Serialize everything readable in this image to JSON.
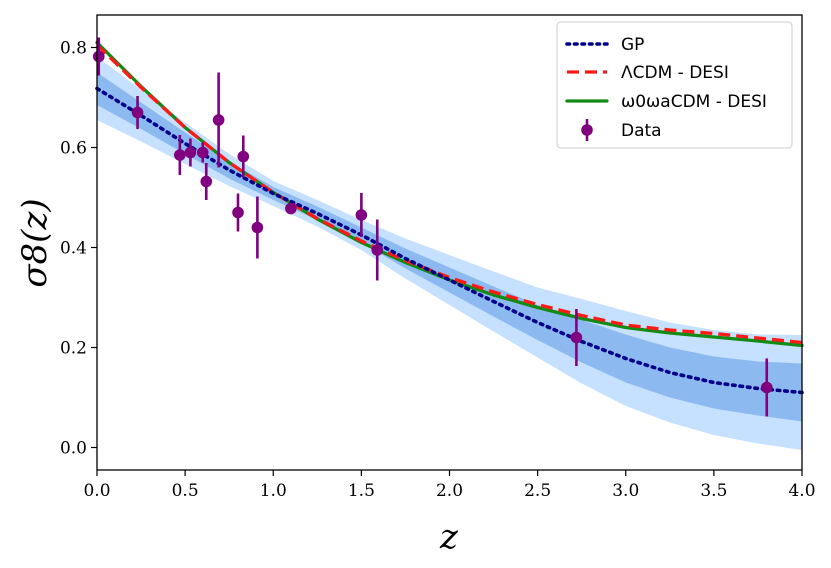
{
  "chart_data": {
    "type": "line",
    "xlabel": "z",
    "ylabel": "σ8(z)",
    "xlim": [
      0.0,
      4.0
    ],
    "ylim": [
      -0.045,
      0.865
    ],
    "xticks": [
      "0.0",
      "0.5",
      "1.0",
      "1.5",
      "2.0",
      "2.5",
      "3.0",
      "3.5",
      "4.0"
    ],
    "yticks": [
      "0.0",
      "0.2",
      "0.4",
      "0.6",
      "0.8"
    ],
    "grid": false,
    "legend_position": "top-right",
    "series": [
      {
        "name": "GP",
        "style": "dotted",
        "color": "#00008b",
        "x": [
          0.0,
          0.25,
          0.5,
          0.75,
          1.0,
          1.25,
          1.5,
          1.75,
          2.0,
          2.25,
          2.5,
          2.75,
          3.0,
          3.25,
          3.5,
          3.75,
          4.0
        ],
        "y": [
          0.718,
          0.664,
          0.608,
          0.555,
          0.508,
          0.468,
          0.425,
          0.378,
          0.335,
          0.292,
          0.25,
          0.212,
          0.178,
          0.15,
          0.13,
          0.118,
          0.11
        ],
        "band_1sigma_lower": [
          0.685,
          0.637,
          0.587,
          0.538,
          0.495,
          0.455,
          0.41,
          0.358,
          0.31,
          0.262,
          0.215,
          0.17,
          0.13,
          0.1,
          0.078,
          0.064,
          0.052
        ],
        "band_1sigma_upper": [
          0.75,
          0.69,
          0.63,
          0.572,
          0.521,
          0.482,
          0.44,
          0.398,
          0.36,
          0.322,
          0.285,
          0.255,
          0.226,
          0.2,
          0.182,
          0.172,
          0.168
        ],
        "band_2sigma_lower": [
          0.655,
          0.612,
          0.567,
          0.523,
          0.483,
          0.442,
          0.395,
          0.338,
          0.285,
          0.232,
          0.18,
          0.128,
          0.083,
          0.05,
          0.025,
          0.008,
          -0.005
        ],
        "band_2sigma_upper": [
          0.782,
          0.715,
          0.65,
          0.587,
          0.533,
          0.495,
          0.455,
          0.418,
          0.385,
          0.352,
          0.32,
          0.297,
          0.273,
          0.25,
          0.235,
          0.226,
          0.225
        ]
      },
      {
        "name": "ΛCDM - DESI",
        "style": "dashed",
        "color": "#ff1a1a",
        "x": [
          0.0,
          0.25,
          0.5,
          0.75,
          1.0,
          1.25,
          1.5,
          1.75,
          2.0,
          2.25,
          2.5,
          2.75,
          3.0,
          3.25,
          3.5,
          3.75,
          4.0
        ],
        "y": [
          0.805,
          0.72,
          0.64,
          0.57,
          0.51,
          0.458,
          0.413,
          0.374,
          0.34,
          0.311,
          0.286,
          0.264,
          0.245,
          0.235,
          0.228,
          0.219,
          0.21
        ]
      },
      {
        "name": "ω0ωaCDM - DESI",
        "style": "solid",
        "color": "#138a13",
        "x": [
          0.0,
          0.25,
          0.5,
          0.75,
          1.0,
          1.25,
          1.5,
          1.75,
          2.0,
          2.25,
          2.5,
          2.75,
          3.0,
          3.25,
          3.5,
          3.75,
          4.0
        ],
        "y": [
          0.81,
          0.722,
          0.64,
          0.57,
          0.51,
          0.457,
          0.41,
          0.37,
          0.335,
          0.305,
          0.28,
          0.258,
          0.24,
          0.229,
          0.221,
          0.213,
          0.204
        ]
      }
    ],
    "data_points": {
      "name": "Data",
      "color": "#800080",
      "points": [
        {
          "z": 0.01,
          "y": 0.782,
          "err": 0.038
        },
        {
          "z": 0.23,
          "y": 0.67,
          "err": 0.033
        },
        {
          "z": 0.47,
          "y": 0.585,
          "err": 0.04
        },
        {
          "z": 0.53,
          "y": 0.59,
          "err": 0.028
        },
        {
          "z": 0.6,
          "y": 0.59,
          "err": 0.02
        },
        {
          "z": 0.62,
          "y": 0.532,
          "err": 0.037
        },
        {
          "z": 0.69,
          "y": 0.655,
          "err": 0.095
        },
        {
          "z": 0.8,
          "y": 0.47,
          "err": 0.038
        },
        {
          "z": 0.83,
          "y": 0.582,
          "err": 0.042
        },
        {
          "z": 0.91,
          "y": 0.44,
          "err": 0.062
        },
        {
          "z": 1.1,
          "y": 0.478,
          "err": 0.007
        },
        {
          "z": 1.5,
          "y": 0.465,
          "err": 0.044
        },
        {
          "z": 1.59,
          "y": 0.395,
          "err": 0.061
        },
        {
          "z": 2.72,
          "y": 0.22,
          "err": 0.057
        },
        {
          "z": 3.8,
          "y": 0.12,
          "err": 0.058
        }
      ]
    },
    "colors": {
      "band_outer": "#c6e0ff",
      "band_inner": "#8cbaf0"
    }
  }
}
